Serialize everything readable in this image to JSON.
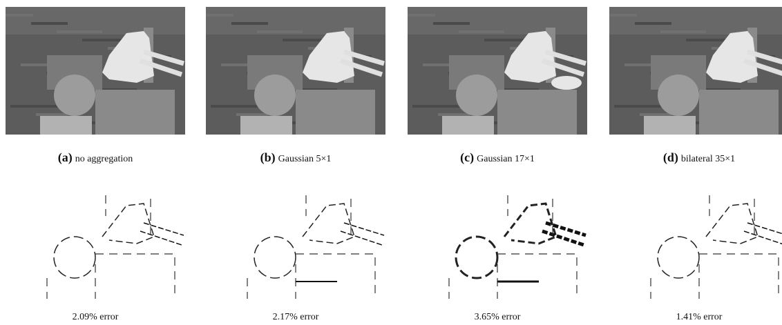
{
  "panels": [
    {
      "label": "(a)",
      "caption": "no aggregation",
      "error": "2.09% error"
    },
    {
      "label": "(b)",
      "caption": "Gaussian 5×1",
      "error": "2.17% error"
    },
    {
      "label": "(c)",
      "caption": "Gaussian 17×1",
      "error": "3.65% error"
    },
    {
      "label": "(d)",
      "caption": "bilateral 35×1",
      "error": "1.41% error"
    }
  ]
}
